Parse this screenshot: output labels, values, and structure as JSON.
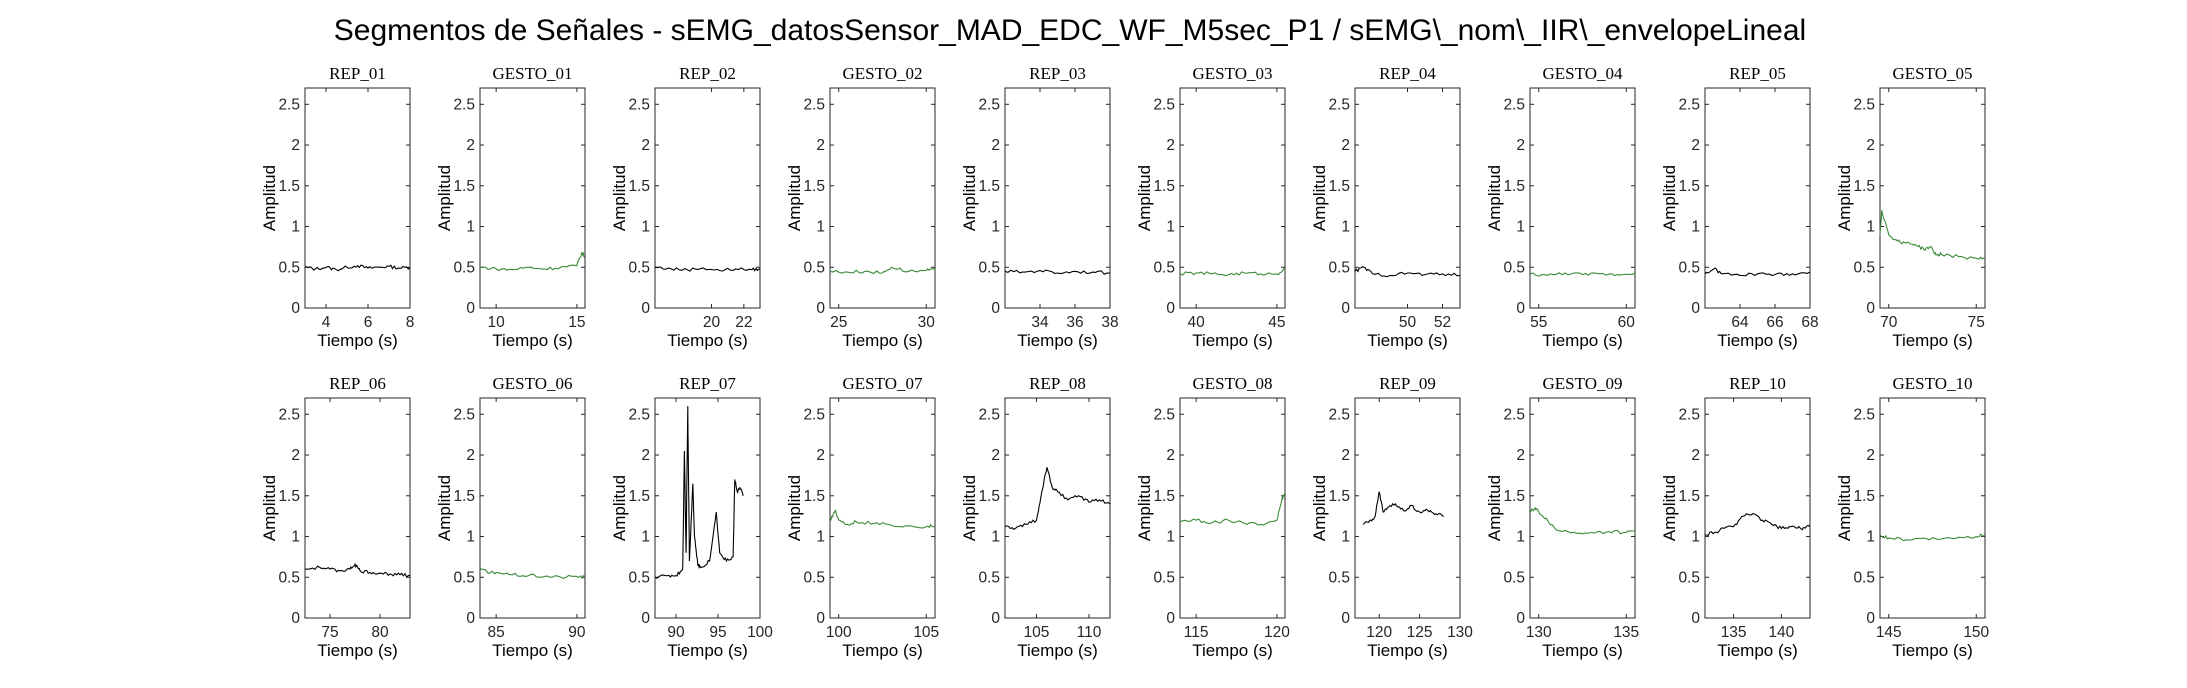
{
  "figure": {
    "title": "Segmentos de Señales - sEMG_datosSensor_MAD_EDC_WF_M5sec_P1 / sEMG\\_nom\\_IIR\\_envelopeLineal"
  },
  "colors": {
    "rep": "#000000",
    "gesto": "#3a8a3a",
    "axis": "#262626"
  },
  "chart_data": [
    {
      "type": "line",
      "title": "REP_01",
      "color": "rep",
      "xlabel": "Tiempo (s)",
      "ylabel": "Amplitud",
      "xlim": [
        3,
        8
      ],
      "ylim": [
        0,
        2.7
      ],
      "xticks": [
        4,
        6,
        8
      ],
      "yticks": [
        0,
        0.5,
        1,
        1.5,
        2,
        2.5
      ],
      "series": [
        {
          "x": [
            3,
            3.5,
            4,
            4.5,
            5,
            5.5,
            6,
            6.5,
            7,
            7.5,
            8
          ],
          "y": [
            0.5,
            0.48,
            0.5,
            0.47,
            0.5,
            0.52,
            0.49,
            0.5,
            0.51,
            0.49,
            0.5
          ]
        }
      ]
    },
    {
      "type": "line",
      "title": "GESTO_01",
      "color": "gesto",
      "xlabel": "Tiempo (s)",
      "ylabel": "Amplitud",
      "xlim": [
        9,
        15.5
      ],
      "ylim": [
        0,
        2.7
      ],
      "xticks": [
        10,
        15
      ],
      "yticks": [
        0,
        0.5,
        1,
        1.5,
        2,
        2.5
      ],
      "series": [
        {
          "x": [
            9,
            10,
            11,
            12,
            13,
            14,
            15,
            15.3,
            15.5
          ],
          "y": [
            0.5,
            0.48,
            0.47,
            0.5,
            0.48,
            0.5,
            0.52,
            0.68,
            0.62
          ]
        }
      ]
    },
    {
      "type": "line",
      "title": "REP_02",
      "color": "rep",
      "xlabel": "Tiempo (s)",
      "ylabel": "Amplitud",
      "xlim": [
        16.5,
        23
      ],
      "ylim": [
        0,
        2.7
      ],
      "xticks": [
        20,
        22
      ],
      "yticks": [
        0,
        0.5,
        1,
        1.5,
        2,
        2.5
      ],
      "series": [
        {
          "x": [
            16.5,
            17.5,
            18.5,
            19.5,
            20.5,
            21.5,
            22.5,
            23
          ],
          "y": [
            0.5,
            0.48,
            0.47,
            0.49,
            0.46,
            0.48,
            0.47,
            0.48
          ]
        }
      ]
    },
    {
      "type": "line",
      "title": "GESTO_02",
      "color": "gesto",
      "xlabel": "Tiempo (s)",
      "ylabel": "Amplitud",
      "xlim": [
        24.5,
        30.5
      ],
      "ylim": [
        0,
        2.7
      ],
      "xticks": [
        25,
        30
      ],
      "yticks": [
        0,
        0.5,
        1,
        1.5,
        2,
        2.5
      ],
      "series": [
        {
          "x": [
            24.5,
            25.5,
            26.5,
            27.5,
            28,
            29,
            30,
            30.5
          ],
          "y": [
            0.45,
            0.44,
            0.45,
            0.43,
            0.5,
            0.45,
            0.46,
            0.47
          ]
        }
      ]
    },
    {
      "type": "line",
      "title": "REP_03",
      "color": "rep",
      "xlabel": "Tiempo (s)",
      "ylabel": "Amplitud",
      "xlim": [
        32,
        38
      ],
      "ylim": [
        0,
        2.7
      ],
      "xticks": [
        34,
        36,
        38
      ],
      "yticks": [
        0,
        0.5,
        1,
        1.5,
        2,
        2.5
      ],
      "series": [
        {
          "x": [
            32,
            33,
            34,
            35,
            36,
            37,
            38
          ],
          "y": [
            0.45,
            0.44,
            0.46,
            0.43,
            0.45,
            0.44,
            0.43
          ]
        }
      ]
    },
    {
      "type": "line",
      "title": "GESTO_03",
      "color": "gesto",
      "xlabel": "Tiempo (s)",
      "ylabel": "Amplitud",
      "xlim": [
        39,
        45.5
      ],
      "ylim": [
        0,
        2.7
      ],
      "xticks": [
        40,
        45
      ],
      "yticks": [
        0,
        0.5,
        1,
        1.5,
        2,
        2.5
      ],
      "series": [
        {
          "x": [
            39,
            40,
            41,
            42,
            43,
            44,
            45,
            45.5
          ],
          "y": [
            0.42,
            0.43,
            0.42,
            0.41,
            0.43,
            0.42,
            0.42,
            0.48
          ]
        }
      ]
    },
    {
      "type": "line",
      "title": "REP_04",
      "color": "rep",
      "xlabel": "Tiempo (s)",
      "ylabel": "Amplitud",
      "xlim": [
        47,
        53
      ],
      "ylim": [
        0,
        2.7
      ],
      "xticks": [
        50,
        52
      ],
      "yticks": [
        0,
        0.5,
        1,
        1.5,
        2,
        2.5
      ],
      "series": [
        {
          "x": [
            47,
            47.5,
            48,
            49,
            50,
            51,
            52,
            53
          ],
          "y": [
            0.45,
            0.5,
            0.42,
            0.4,
            0.43,
            0.41,
            0.42,
            0.4
          ]
        }
      ]
    },
    {
      "type": "line",
      "title": "GESTO_04",
      "color": "gesto",
      "xlabel": "Tiempo (s)",
      "ylabel": "Amplitud",
      "xlim": [
        54.5,
        60.5
      ],
      "ylim": [
        0,
        2.7
      ],
      "xticks": [
        55,
        60
      ],
      "yticks": [
        0,
        0.5,
        1,
        1.5,
        2,
        2.5
      ],
      "series": [
        {
          "x": [
            54.5,
            55.5,
            56.5,
            57.5,
            58.5,
            59.5,
            60.5
          ],
          "y": [
            0.42,
            0.4,
            0.43,
            0.41,
            0.42,
            0.41,
            0.43
          ]
        }
      ]
    },
    {
      "type": "line",
      "title": "REP_05",
      "color": "rep",
      "xlabel": "Tiempo (s)",
      "ylabel": "Amplitud",
      "xlim": [
        62,
        68
      ],
      "ylim": [
        0,
        2.7
      ],
      "xticks": [
        64,
        66,
        68
      ],
      "yticks": [
        0,
        0.5,
        1,
        1.5,
        2,
        2.5
      ],
      "series": [
        {
          "x": [
            62,
            62.5,
            63,
            64,
            65,
            66,
            67,
            68
          ],
          "y": [
            0.42,
            0.48,
            0.42,
            0.4,
            0.42,
            0.41,
            0.42,
            0.44
          ]
        }
      ]
    },
    {
      "type": "line",
      "title": "GESTO_05",
      "color": "gesto",
      "xlabel": "Tiempo (s)",
      "ylabel": "Amplitud",
      "xlim": [
        69.5,
        75.5
      ],
      "ylim": [
        0,
        2.7
      ],
      "xticks": [
        70,
        75
      ],
      "yticks": [
        0,
        0.5,
        1,
        1.5,
        2,
        2.5
      ],
      "series": [
        {
          "x": [
            69.5,
            69.6,
            70,
            70.5,
            71,
            71.5,
            72,
            72.4,
            72.7,
            73,
            74,
            75,
            75.5
          ],
          "y": [
            0.9,
            1.2,
            0.9,
            0.82,
            0.8,
            0.78,
            0.72,
            0.75,
            0.65,
            0.66,
            0.63,
            0.61,
            0.6
          ]
        }
      ]
    },
    {
      "type": "line",
      "title": "REP_06",
      "color": "rep",
      "xlabel": "Tiempo (s)",
      "ylabel": "Amplitud",
      "xlim": [
        72.5,
        83
      ],
      "ylim": [
        0,
        2.7
      ],
      "xticks": [
        75,
        80
      ],
      "yticks": [
        0,
        0.5,
        1,
        1.5,
        2,
        2.5
      ],
      "series": [
        {
          "x": [
            72.5,
            74,
            75,
            76,
            77,
            77.5,
            78,
            79,
            80,
            81,
            82,
            83
          ],
          "y": [
            0.6,
            0.62,
            0.6,
            0.58,
            0.6,
            0.66,
            0.58,
            0.56,
            0.55,
            0.54,
            0.53,
            0.52
          ]
        }
      ]
    },
    {
      "type": "line",
      "title": "GESTO_06",
      "color": "gesto",
      "xlabel": "Tiempo (s)",
      "ylabel": "Amplitud",
      "xlim": [
        84,
        90.5
      ],
      "ylim": [
        0,
        2.7
      ],
      "xticks": [
        85,
        90
      ],
      "yticks": [
        0,
        0.5,
        1,
        1.5,
        2,
        2.5
      ],
      "series": [
        {
          "x": [
            84,
            84.5,
            85,
            86,
            87,
            88,
            89,
            90,
            90.5
          ],
          "y": [
            0.62,
            0.55,
            0.56,
            0.53,
            0.52,
            0.51,
            0.5,
            0.51,
            0.5
          ]
        }
      ]
    },
    {
      "type": "line",
      "title": "REP_07",
      "color": "rep",
      "xlabel": "Tiempo (s)",
      "ylabel": "Amplitud",
      "xlim": [
        87.5,
        100
      ],
      "ylim": [
        0,
        2.7
      ],
      "xticks": [
        90,
        95,
        100
      ],
      "yticks": [
        0,
        0.5,
        1,
        1.5,
        2,
        2.5
      ],
      "series": [
        {
          "x": [
            87.5,
            89,
            90,
            90.8,
            91,
            91.2,
            91.4,
            91.6,
            92,
            92.2,
            92.6,
            93,
            94,
            94.8,
            95.2,
            96,
            96.8,
            97,
            97.3,
            97.6,
            98
          ],
          "y": [
            0.5,
            0.52,
            0.52,
            0.6,
            2.05,
            0.8,
            2.6,
            0.7,
            1.65,
            1.0,
            0.65,
            0.62,
            0.7,
            1.3,
            0.8,
            0.7,
            0.75,
            1.7,
            1.55,
            1.6,
            1.5
          ]
        }
      ]
    },
    {
      "type": "line",
      "title": "GESTO_07",
      "color": "gesto",
      "xlabel": "Tiempo (s)",
      "ylabel": "Amplitud",
      "xlim": [
        99.5,
        105.5
      ],
      "ylim": [
        0,
        2.7
      ],
      "xticks": [
        100,
        105
      ],
      "yticks": [
        0,
        0.5,
        1,
        1.5,
        2,
        2.5
      ],
      "series": [
        {
          "x": [
            99.5,
            99.8,
            100,
            100.5,
            101,
            102,
            103,
            104,
            105,
            105.5
          ],
          "y": [
            1.2,
            1.32,
            1.2,
            1.15,
            1.18,
            1.16,
            1.14,
            1.13,
            1.12,
            1.13
          ]
        }
      ]
    },
    {
      "type": "line",
      "title": "REP_08",
      "color": "rep",
      "xlabel": "Tiempo (s)",
      "ylabel": "Amplitud",
      "xlim": [
        102,
        112
      ],
      "ylim": [
        0,
        2.7
      ],
      "xticks": [
        105,
        110
      ],
      "yticks": [
        0,
        0.5,
        1,
        1.5,
        2,
        2.5
      ],
      "series": [
        {
          "x": [
            102,
            103,
            104,
            105,
            105.5,
            106,
            106.5,
            107,
            108,
            109,
            110,
            111,
            112
          ],
          "y": [
            1.12,
            1.1,
            1.15,
            1.2,
            1.55,
            1.85,
            1.6,
            1.55,
            1.45,
            1.5,
            1.42,
            1.45,
            1.4
          ]
        }
      ]
    },
    {
      "type": "line",
      "title": "GESTO_08",
      "color": "gesto",
      "xlabel": "Tiempo (s)",
      "ylabel": "Amplitud",
      "xlim": [
        114,
        120.5
      ],
      "ylim": [
        0,
        2.7
      ],
      "xticks": [
        115,
        120
      ],
      "yticks": [
        0,
        0.5,
        1,
        1.5,
        2,
        2.5
      ],
      "series": [
        {
          "x": [
            114,
            115,
            116,
            117,
            118,
            119,
            120,
            120.3,
            120.5
          ],
          "y": [
            1.18,
            1.2,
            1.17,
            1.2,
            1.16,
            1.15,
            1.2,
            1.45,
            1.55
          ]
        }
      ]
    },
    {
      "type": "line",
      "title": "REP_09",
      "color": "rep",
      "xlabel": "Tiempo (s)",
      "ylabel": "Amplitud",
      "xlim": [
        117,
        130
      ],
      "ylim": [
        0,
        2.7
      ],
      "xticks": [
        120,
        125,
        130
      ],
      "yticks": [
        0,
        0.5,
        1,
        1.5,
        2,
        2.5
      ],
      "series": [
        {
          "x": [
            118,
            119,
            119.5,
            120,
            120.5,
            121,
            122,
            123,
            124,
            125,
            126,
            127,
            128
          ],
          "y": [
            1.15,
            1.2,
            1.25,
            1.55,
            1.3,
            1.35,
            1.4,
            1.32,
            1.38,
            1.3,
            1.32,
            1.28,
            1.25
          ]
        }
      ]
    },
    {
      "type": "line",
      "title": "GESTO_09",
      "color": "gesto",
      "xlabel": "Tiempo (s)",
      "ylabel": "Amplitud",
      "xlim": [
        129.5,
        135.5
      ],
      "ylim": [
        0,
        2.7
      ],
      "xticks": [
        130,
        135
      ],
      "yticks": [
        0,
        0.5,
        1,
        1.5,
        2,
        2.5
      ],
      "series": [
        {
          "x": [
            129.5,
            129.8,
            130,
            130.5,
            131,
            132,
            133,
            134,
            135,
            135.5
          ],
          "y": [
            1.3,
            1.35,
            1.3,
            1.2,
            1.08,
            1.05,
            1.05,
            1.06,
            1.05,
            1.07
          ]
        }
      ]
    },
    {
      "type": "line",
      "title": "REP_10",
      "color": "rep",
      "xlabel": "Tiempo (s)",
      "ylabel": "Amplitud",
      "xlim": [
        132,
        143
      ],
      "ylim": [
        0,
        2.7
      ],
      "xticks": [
        135,
        140
      ],
      "yticks": [
        0,
        0.5,
        1,
        1.5,
        2,
        2.5
      ],
      "series": [
        {
          "x": [
            132,
            133,
            134,
            135,
            136,
            137,
            138,
            139,
            140,
            141,
            142,
            143
          ],
          "y": [
            1.02,
            1.05,
            1.1,
            1.12,
            1.25,
            1.28,
            1.2,
            1.15,
            1.1,
            1.12,
            1.1,
            1.12
          ]
        }
      ]
    },
    {
      "type": "line",
      "title": "GESTO_10",
      "color": "gesto",
      "xlabel": "Tiempo (s)",
      "ylabel": "Amplitud",
      "xlim": [
        144.5,
        150.5
      ],
      "ylim": [
        0,
        2.7
      ],
      "xticks": [
        145,
        150
      ],
      "yticks": [
        0,
        0.5,
        1,
        1.5,
        2,
        2.5
      ],
      "series": [
        {
          "x": [
            144.5,
            145,
            146,
            147,
            148,
            149,
            150,
            150.5
          ],
          "y": [
            1.02,
            0.98,
            0.96,
            0.98,
            0.97,
            0.99,
            1.0,
            1.02
          ]
        }
      ]
    }
  ]
}
